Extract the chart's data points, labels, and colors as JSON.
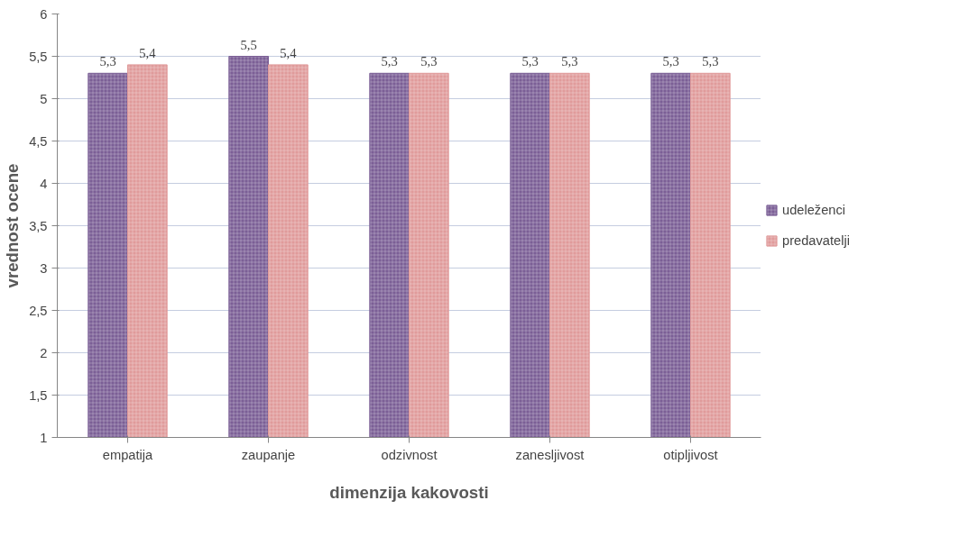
{
  "chart_data": {
    "type": "bar",
    "xlabel": "dimenzija kakovosti",
    "ylabel": "vrednost ocene",
    "categories": [
      "empatija",
      "zaupanje",
      "odzivnost",
      "zanesljivost",
      "otipljivost"
    ],
    "series": [
      {
        "name": "udeleženci",
        "color": "#7b5f96",
        "values": [
          5.3,
          5.5,
          5.3,
          5.3,
          5.3
        ],
        "value_labels": [
          "5,3",
          "5,5",
          "5,3",
          "5,3",
          "5,3"
        ]
      },
      {
        "name": "predavatelji",
        "color": "#e09b9b",
        "values": [
          5.4,
          5.4,
          5.3,
          5.3,
          5.3
        ],
        "value_labels": [
          "5,4",
          "5,4",
          "5,3",
          "5,3",
          "5,3"
        ]
      }
    ],
    "ylim": [
      1,
      6
    ],
    "yticks": [
      1,
      {
        "value": 1.5,
        "label": "1,5"
      },
      2,
      {
        "value": 2.5,
        "label": "2,5"
      },
      3,
      {
        "value": 3.5,
        "label": "3,5"
      },
      4,
      {
        "value": 4.5,
        "label": "4,5"
      },
      5,
      {
        "value": 5.5,
        "label": "5,5"
      },
      6
    ],
    "grid": "y",
    "legend": "right"
  }
}
